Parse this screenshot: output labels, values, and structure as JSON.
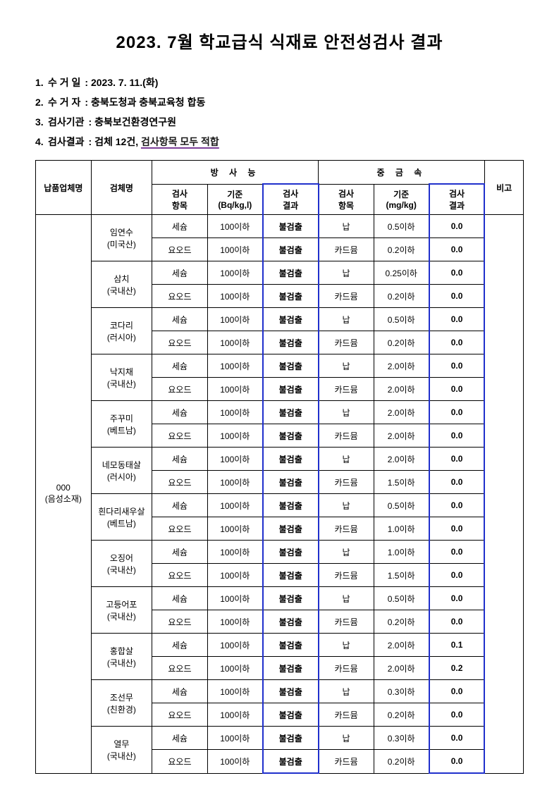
{
  "title": "2023. 7월 학교급식 식재료 안전성검사 결과",
  "meta": {
    "line1": {
      "no": "1.",
      "label": "수 거 일",
      "sep": ":",
      "value": "2023. 7. 11.(화)"
    },
    "line2": {
      "no": "2.",
      "label": "수 거 자",
      "sep": ":",
      "value": "충북도청과 충북교육청 합동"
    },
    "line3": {
      "no": "3.",
      "label": "검사기관",
      "sep": ":",
      "value": "충북보건환경연구원"
    },
    "line4": {
      "no": "4.",
      "label": "검사결과",
      "sep": ":",
      "prefix": "검체 12건,",
      "highlight": "검사항목 모두 적합"
    }
  },
  "columns": {
    "company": "납품업체명",
    "sample": "검체명",
    "rad_group": "방 사 능",
    "metal_group": "중 금 속",
    "item": "검사\n항목",
    "std_rad": "기준\n(Bq/kg,l)",
    "result": "검사\n결과",
    "std_metal": "기준\n(mg/kg)",
    "note": "비고"
  },
  "company_cell": "000\n(음성소재)",
  "rows": [
    {
      "sample": "임연수\n(미국산)",
      "sub": [
        {
          "rad_item": "세슘",
          "rad_std": "100이하",
          "rad_res": "불검출",
          "m_item": "납",
          "m_std": "0.5이하",
          "m_res": "0.0"
        },
        {
          "rad_item": "요오드",
          "rad_std": "100이하",
          "rad_res": "불검출",
          "m_item": "카드뮴",
          "m_std": "0.2이하",
          "m_res": "0.0"
        }
      ]
    },
    {
      "sample": "삼치\n(국내산)",
      "sub": [
        {
          "rad_item": "세슘",
          "rad_std": "100이하",
          "rad_res": "불검출",
          "m_item": "납",
          "m_std": "0.25이하",
          "m_res": "0.0"
        },
        {
          "rad_item": "요오드",
          "rad_std": "100이하",
          "rad_res": "불검출",
          "m_item": "카드뮴",
          "m_std": "0.2이하",
          "m_res": "0.0"
        }
      ]
    },
    {
      "sample": "코다리\n(러시아)",
      "sub": [
        {
          "rad_item": "세슘",
          "rad_std": "100이하",
          "rad_res": "불검출",
          "m_item": "납",
          "m_std": "0.5이하",
          "m_res": "0.0"
        },
        {
          "rad_item": "요오드",
          "rad_std": "100이하",
          "rad_res": "불검출",
          "m_item": "카드뮴",
          "m_std": "0.2이하",
          "m_res": "0.0"
        }
      ]
    },
    {
      "sample": "낙지채\n(국내산)",
      "sub": [
        {
          "rad_item": "세슘",
          "rad_std": "100이하",
          "rad_res": "불검출",
          "m_item": "납",
          "m_std": "2.0이하",
          "m_res": "0.0"
        },
        {
          "rad_item": "요오드",
          "rad_std": "100이하",
          "rad_res": "불검출",
          "m_item": "카드뮴",
          "m_std": "2.0이하",
          "m_res": "0.0"
        }
      ]
    },
    {
      "sample": "주꾸미\n(베트남)",
      "sub": [
        {
          "rad_item": "세슘",
          "rad_std": "100이하",
          "rad_res": "불검출",
          "m_item": "납",
          "m_std": "2.0이하",
          "m_res": "0.0"
        },
        {
          "rad_item": "요오드",
          "rad_std": "100이하",
          "rad_res": "불검출",
          "m_item": "카드뮴",
          "m_std": "2.0이하",
          "m_res": "0.0"
        }
      ]
    },
    {
      "sample": "네모동태살\n(러시아)",
      "sub": [
        {
          "rad_item": "세슘",
          "rad_std": "100이하",
          "rad_res": "불검출",
          "m_item": "납",
          "m_std": "2.0이하",
          "m_res": "0.0"
        },
        {
          "rad_item": "요오드",
          "rad_std": "100이하",
          "rad_res": "불검출",
          "m_item": "카드뮴",
          "m_std": "1.5이하",
          "m_res": "0.0"
        }
      ]
    },
    {
      "sample": "흰다리새우살\n(베트남)",
      "sub": [
        {
          "rad_item": "세슘",
          "rad_std": "100이하",
          "rad_res": "불검출",
          "m_item": "납",
          "m_std": "0.5이하",
          "m_res": "0.0"
        },
        {
          "rad_item": "요오드",
          "rad_std": "100이하",
          "rad_res": "불검출",
          "m_item": "카드뮴",
          "m_std": "1.0이하",
          "m_res": "0.0"
        }
      ]
    },
    {
      "sample": "오징어\n(국내산)",
      "sub": [
        {
          "rad_item": "세슘",
          "rad_std": "100이하",
          "rad_res": "불검출",
          "m_item": "납",
          "m_std": "1.0이하",
          "m_res": "0.0"
        },
        {
          "rad_item": "요오드",
          "rad_std": "100이하",
          "rad_res": "불검출",
          "m_item": "카드뮴",
          "m_std": "1.5이하",
          "m_res": "0.0"
        }
      ]
    },
    {
      "sample": "고등어포\n(국내산)",
      "sub": [
        {
          "rad_item": "세슘",
          "rad_std": "100이하",
          "rad_res": "불검출",
          "m_item": "납",
          "m_std": "0.5이하",
          "m_res": "0.0"
        },
        {
          "rad_item": "요오드",
          "rad_std": "100이하",
          "rad_res": "불검출",
          "m_item": "카드뮴",
          "m_std": "0.2이하",
          "m_res": "0.0"
        }
      ]
    },
    {
      "sample": "홍합살\n(국내산)",
      "sub": [
        {
          "rad_item": "세슘",
          "rad_std": "100이하",
          "rad_res": "불검출",
          "m_item": "납",
          "m_std": "2.0이하",
          "m_res": "0.1"
        },
        {
          "rad_item": "요오드",
          "rad_std": "100이하",
          "rad_res": "불검출",
          "m_item": "카드뮴",
          "m_std": "2.0이하",
          "m_res": "0.2"
        }
      ]
    },
    {
      "sample": "조선무\n(친환경)",
      "sub": [
        {
          "rad_item": "세슘",
          "rad_std": "100이하",
          "rad_res": "불검출",
          "m_item": "납",
          "m_std": "0.3이하",
          "m_res": "0.0"
        },
        {
          "rad_item": "요오드",
          "rad_std": "100이하",
          "rad_res": "불검출",
          "m_item": "카드뮴",
          "m_std": "0.2이하",
          "m_res": "0.0"
        }
      ]
    },
    {
      "sample": "열무\n(국내산)",
      "sub": [
        {
          "rad_item": "세슘",
          "rad_std": "100이하",
          "rad_res": "불검출",
          "m_item": "납",
          "m_std": "0.3이하",
          "m_res": "0.0"
        },
        {
          "rad_item": "요오드",
          "rad_std": "100이하",
          "rad_res": "불검출",
          "m_item": "카드뮴",
          "m_std": "0.2이하",
          "m_res": "0.0"
        }
      ]
    }
  ],
  "style": {
    "highlight_border_color": "#2030cc",
    "text_color": "#000000",
    "background": "#ffffff",
    "title_fontsize": 24,
    "body_fontsize": 14,
    "table_fontsize": 12
  }
}
